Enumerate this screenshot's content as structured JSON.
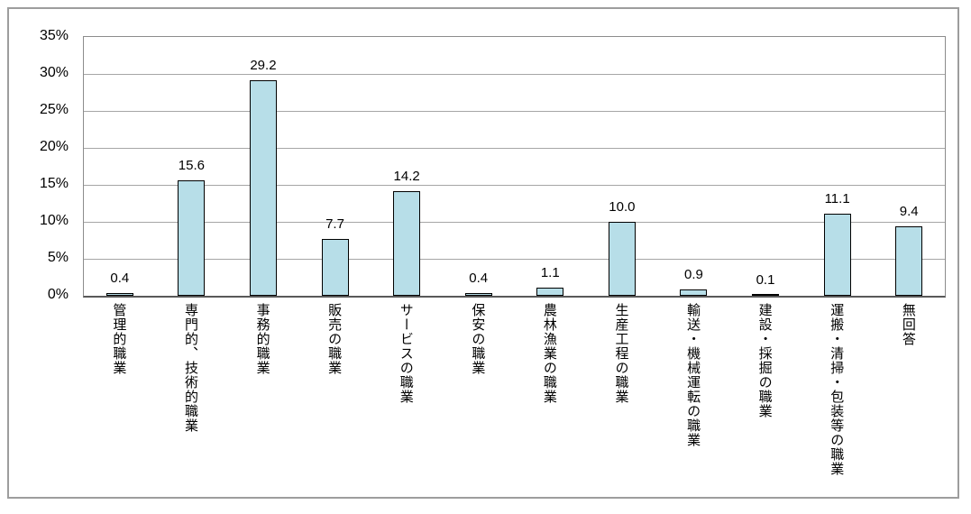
{
  "chart_data": {
    "type": "bar",
    "title": "",
    "xlabel": "",
    "ylabel": "",
    "categories": [
      "管理的職業",
      "専門的、技術的職業",
      "事務的職業",
      "販売の職業",
      "サービスの職業",
      "保安の職業",
      "農林漁業の職業",
      "生産工程の職業",
      "輸送・機械運転の職業",
      "建設・採掘の職業",
      "運搬・清掃・包装等の職業",
      "無回答"
    ],
    "values": [
      0.4,
      15.6,
      29.2,
      7.7,
      14.2,
      0.4,
      1.1,
      10.0,
      0.9,
      0.1,
      11.1,
      9.4
    ],
    "value_labels": [
      "0.4",
      "15.6",
      "29.2",
      "7.7",
      "14.2",
      "0.4",
      "1.1",
      "10.0",
      "0.9",
      "0.1",
      "11.1",
      "9.4"
    ],
    "ylim": [
      0,
      35
    ],
    "ytick_step": 5,
    "ytick_labels": [
      "0%",
      "5%",
      "10%",
      "15%",
      "20%",
      "25%",
      "30%",
      "35%"
    ],
    "grid": true,
    "legend": "none",
    "colors": {
      "bar_fill": "#b7dee8",
      "bar_border": "#000000",
      "gridline": "#a6a6a6",
      "plot_border": "#8c8c8c",
      "axis_line": "#595959",
      "outer_frame_border": "#9d9d9d",
      "background": "#ffffff",
      "text": "#000000"
    }
  }
}
